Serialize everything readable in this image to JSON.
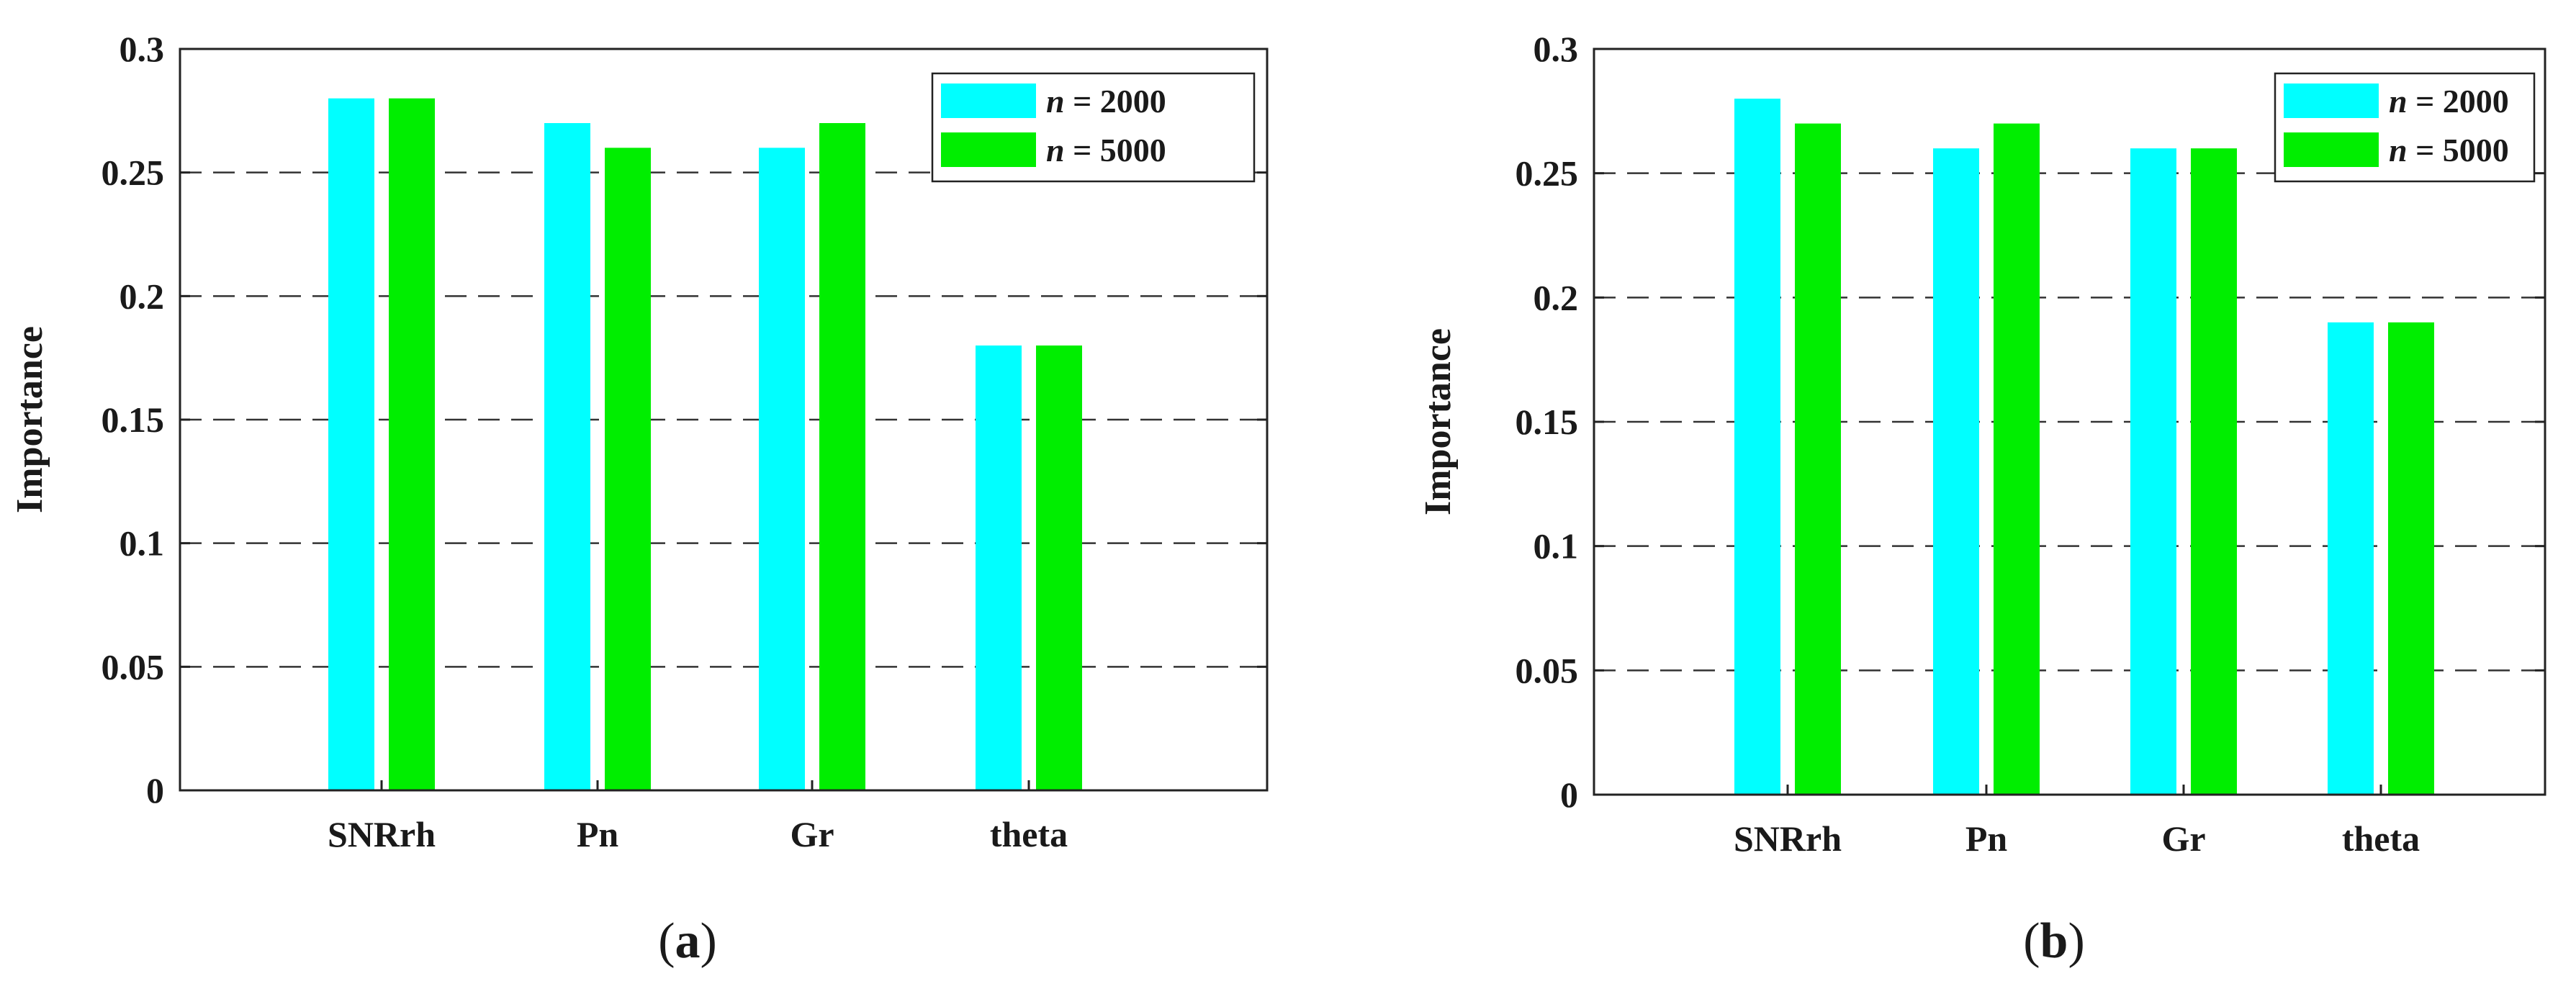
{
  "figure": {
    "legend_var": "n",
    "legend_eq": "= "
  },
  "chart_data": [
    {
      "type": "bar",
      "panel_caption": "a",
      "categories": [
        "SNRrh",
        "Pn",
        "Gr",
        "theta"
      ],
      "series": [
        {
          "name": "n = 2000",
          "label_value": "2000",
          "color": "#00FFFF",
          "values": [
            0.28,
            0.27,
            0.26,
            0.18
          ]
        },
        {
          "name": "n = 5000",
          "label_value": "5000",
          "color": "#00EE00",
          "values": [
            0.28,
            0.26,
            0.27,
            0.18
          ]
        }
      ],
      "ylabel": "Importance",
      "xlabel": "",
      "ylim": [
        0,
        0.3
      ],
      "yticks": [
        "0",
        "0.05",
        "0.1",
        "0.15",
        "0.2",
        "0.25",
        "0.3"
      ],
      "ytick_values": [
        0,
        0.05,
        0.1,
        0.15,
        0.2,
        0.25,
        0.3
      ],
      "grid": "dashed horizontal",
      "legend_position": "top-right"
    },
    {
      "type": "bar",
      "panel_caption": "b",
      "categories": [
        "SNRrh",
        "Pn",
        "Gr",
        "theta"
      ],
      "series": [
        {
          "name": "n = 2000",
          "label_value": "2000",
          "color": "#00FFFF",
          "values": [
            0.28,
            0.26,
            0.26,
            0.19
          ]
        },
        {
          "name": "n = 5000",
          "label_value": "5000",
          "color": "#00EE00",
          "values": [
            0.27,
            0.27,
            0.26,
            0.19
          ]
        }
      ],
      "ylabel": "Importance",
      "xlabel": "",
      "ylim": [
        0,
        0.3
      ],
      "yticks": [
        "0",
        "0.05",
        "0.1",
        "0.15",
        "0.2",
        "0.25",
        "0.3"
      ],
      "ytick_values": [
        0,
        0.05,
        0.1,
        0.15,
        0.2,
        0.25,
        0.3
      ],
      "grid": "dashed horizontal",
      "legend_position": "top-right"
    }
  ]
}
